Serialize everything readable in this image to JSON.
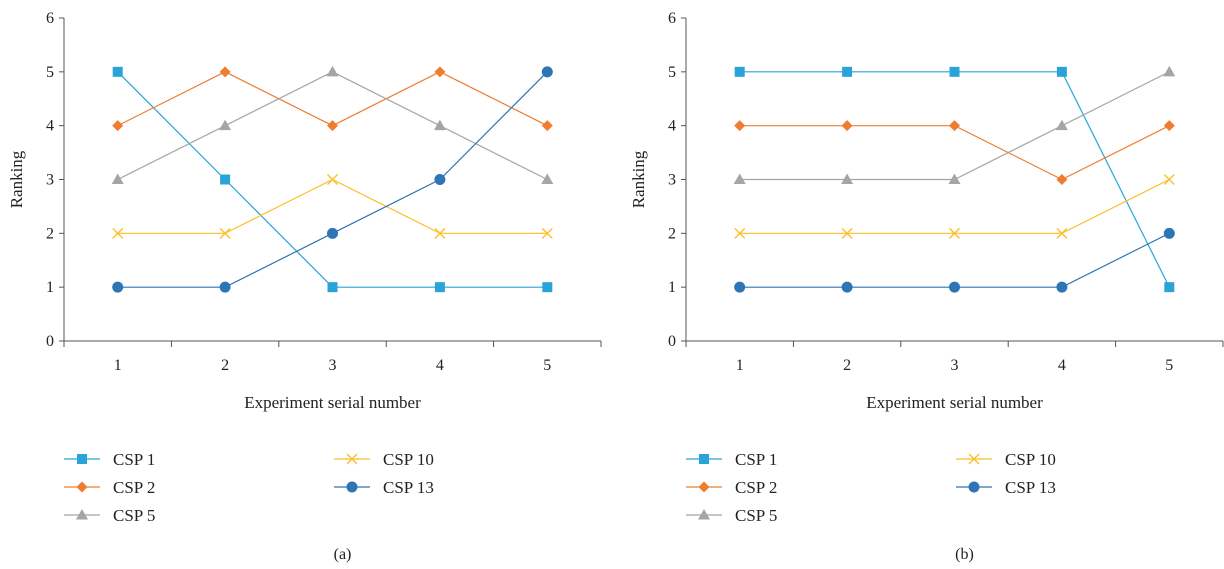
{
  "colors": {
    "CSP 1": "#2aa3d8",
    "CSP 2": "#ee7d31",
    "CSP 5": "#a5a5a5",
    "CSP 10": "#fbbf2a",
    "CSP 13": "#2e75b6",
    "axis": "#555555"
  },
  "chart_data": [
    {
      "type": "line",
      "caption": "(a)",
      "xlabel": "Experiment serial number",
      "ylabel": "Ranking",
      "x": [
        1,
        2,
        3,
        4,
        5
      ],
      "ylim": [
        0,
        6
      ],
      "yticks": [
        0,
        1,
        2,
        3,
        4,
        5,
        6
      ],
      "grid": false,
      "legend_placement": "bottom",
      "series": [
        {
          "name": "CSP 1",
          "marker": "square",
          "values": [
            5,
            3,
            1,
            1,
            1
          ]
        },
        {
          "name": "CSP 2",
          "marker": "diamond",
          "values": [
            4,
            5,
            4,
            5,
            4
          ]
        },
        {
          "name": "CSP 5",
          "marker": "triangle",
          "values": [
            3,
            4,
            5,
            4,
            3
          ]
        },
        {
          "name": "CSP 10",
          "marker": "x",
          "values": [
            2,
            2,
            3,
            2,
            2
          ]
        },
        {
          "name": "CSP 13",
          "marker": "circle",
          "values": [
            1,
            1,
            2,
            3,
            5
          ]
        }
      ]
    },
    {
      "type": "line",
      "caption": "(b)",
      "xlabel": "Experiment serial number",
      "ylabel": "Ranking",
      "x": [
        1,
        2,
        3,
        4,
        5
      ],
      "ylim": [
        0,
        6
      ],
      "yticks": [
        0,
        1,
        2,
        3,
        4,
        5,
        6
      ],
      "grid": false,
      "legend_placement": "bottom",
      "series": [
        {
          "name": "CSP 1",
          "marker": "square",
          "values": [
            5,
            5,
            5,
            5,
            1
          ]
        },
        {
          "name": "CSP 2",
          "marker": "diamond",
          "values": [
            4,
            4,
            4,
            3,
            4
          ]
        },
        {
          "name": "CSP 5",
          "marker": "triangle",
          "values": [
            3,
            3,
            3,
            4,
            5
          ]
        },
        {
          "name": "CSP 10",
          "marker": "x",
          "values": [
            2,
            2,
            2,
            2,
            3
          ]
        },
        {
          "name": "CSP 13",
          "marker": "circle",
          "values": [
            1,
            1,
            1,
            1,
            2
          ]
        }
      ]
    }
  ]
}
